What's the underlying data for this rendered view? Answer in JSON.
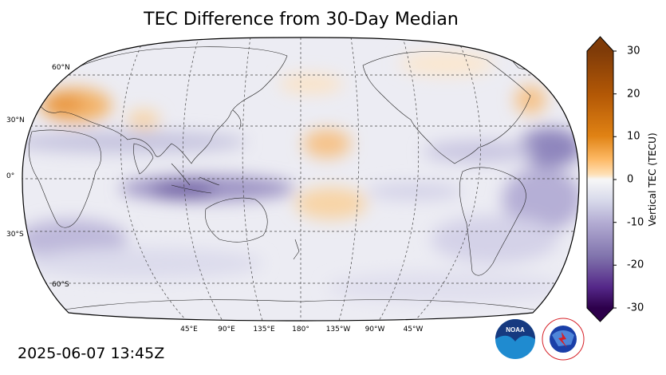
{
  "title": "TEC Difference from 30-Day Median",
  "timestamp": "2025-06-07 13:45Z",
  "colorbar": {
    "label": "Vertical TEC (TECU)",
    "ticks": [
      "30",
      "20",
      "10",
      "0",
      "-10",
      "-20",
      "-30"
    ],
    "range": [
      -30,
      30
    ],
    "colormap": "PuOr_r",
    "extend": "both"
  },
  "graticule": {
    "lat_labels": [
      "60°N",
      "30°N",
      "0°",
      "30°S",
      "60°S"
    ],
    "lon_labels": [
      "45°E",
      "90°E",
      "135°E",
      "180°",
      "135°W",
      "90°W",
      "45°W"
    ]
  },
  "map": {
    "projection": "Robinson",
    "central_longitude": "180°"
  },
  "logos": {
    "noaa": "NOAA",
    "nws": "NATIONAL WEATHER SERVICE"
  },
  "colors": {
    "positive_dark": "#7f3b08",
    "positive": "#e08214",
    "positive_light": "#fdd6a4",
    "neutral": "#f1f1f1",
    "negative_light": "#d8daeb",
    "negative": "#8073ac",
    "negative_dark": "#2d004b",
    "noaa_blue": "#1f6fb8",
    "nws_red": "#d62027"
  }
}
